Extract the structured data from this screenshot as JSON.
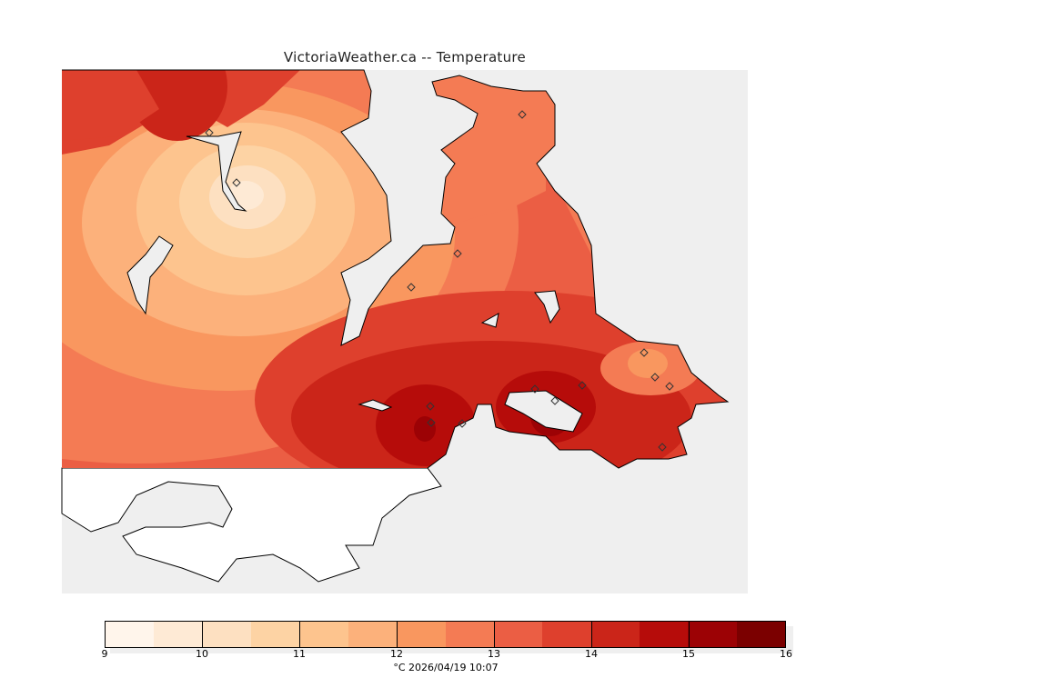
{
  "title": "VictoriaWeather.ca -- Temperature",
  "colorbar": {
    "min": 9,
    "max": 16,
    "ticks": [
      "9",
      "10",
      "11",
      "12",
      "13",
      "14",
      "15",
      "16"
    ],
    "colors": [
      "#fff5eb",
      "#feead5",
      "#fde0c1",
      "#fdd3a4",
      "#fdc48e",
      "#fcb17b",
      "#f9975f",
      "#f47b54",
      "#eb5e44",
      "#de402d",
      "#cb2519",
      "#b60c0a",
      "#9c0205",
      "#7b0000"
    ],
    "label": "°C  2026/04/19 10:07"
  },
  "colors": {
    "water": "#efefef",
    "land_outside": "#ffffff"
  }
}
